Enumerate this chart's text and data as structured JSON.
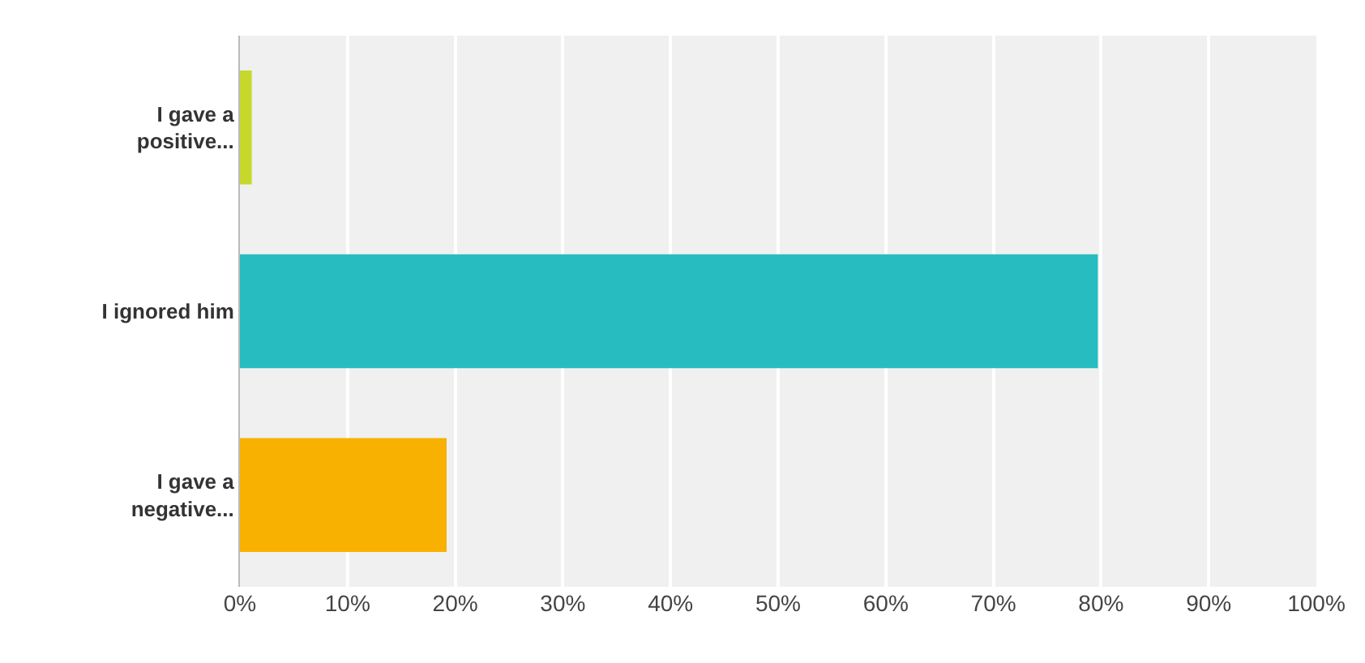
{
  "chart_data": {
    "type": "bar",
    "orientation": "horizontal",
    "categories": [
      "I gave a positive...",
      "I ignored him",
      "I gave a negative..."
    ],
    "values": [
      1.1,
      79.7,
      19.2
    ],
    "colors": [
      "#c5d82b",
      "#27bcc0",
      "#f8b100"
    ],
    "xlim": [
      0,
      100
    ],
    "xticks": [
      {
        "value": 0,
        "label": "0%"
      },
      {
        "value": 10,
        "label": "10%"
      },
      {
        "value": 20,
        "label": "20%"
      },
      {
        "value": 30,
        "label": "30%"
      },
      {
        "value": 40,
        "label": "40%"
      },
      {
        "value": 50,
        "label": "50%"
      },
      {
        "value": 60,
        "label": "60%"
      },
      {
        "value": 70,
        "label": "70%"
      },
      {
        "value": 80,
        "label": "80%"
      },
      {
        "value": 90,
        "label": "90%"
      },
      {
        "value": 100,
        "label": "100%"
      }
    ],
    "grid": "x"
  }
}
